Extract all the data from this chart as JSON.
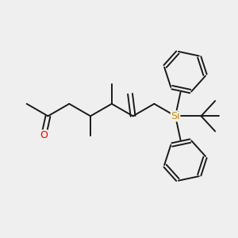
{
  "bg_color": "#efefef",
  "bond_color": "#1a1a1a",
  "oxygen_color": "#ee0000",
  "silicon_color": "#c89000",
  "bond_lw": 1.4,
  "font_size_o": 9,
  "font_size_si": 9
}
